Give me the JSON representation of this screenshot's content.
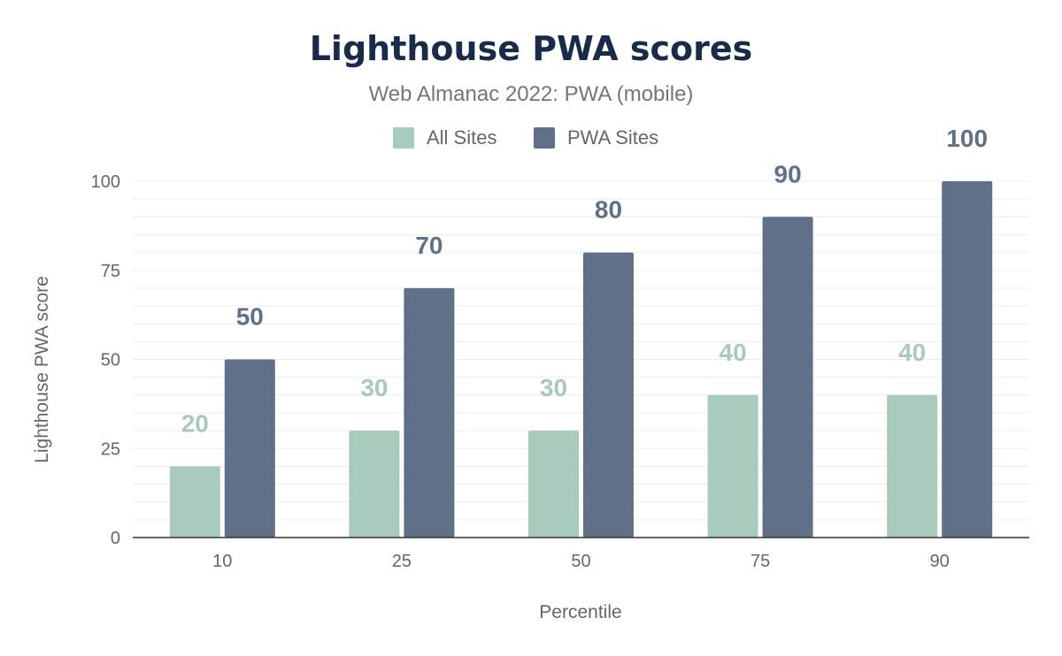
{
  "colors": {
    "title": "#1a2b4a",
    "subtitle": "#757575",
    "axis_text": "#666666",
    "grid": "#ececec",
    "baseline": "#333333",
    "all_sites": "#a8cabb",
    "pwa_sites": "#617089"
  },
  "chart_data": {
    "type": "bar",
    "title": "Lighthouse PWA scores",
    "subtitle": "Web Almanac 2022: PWA (mobile)",
    "xlabel": "Percentile",
    "ylabel": "Lighthouse PWA score",
    "categories": [
      "10",
      "25",
      "50",
      "75",
      "90"
    ],
    "series": [
      {
        "name": "All Sites",
        "values": [
          20,
          30,
          30,
          40,
          40
        ],
        "color": "#a8cabb"
      },
      {
        "name": "PWA Sites",
        "values": [
          50,
          70,
          80,
          90,
          100
        ],
        "color": "#617089"
      }
    ],
    "ylim": [
      0,
      100
    ],
    "yticks": [
      "0",
      "25",
      "50",
      "75",
      "100"
    ],
    "grid": true,
    "legend_position": "top-center",
    "data_labels": true
  }
}
